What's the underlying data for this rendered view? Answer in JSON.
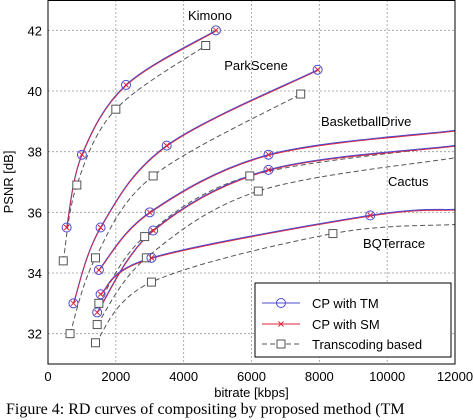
{
  "chart_data": {
    "type": "line",
    "xlabel": "bitrate [kbps]",
    "ylabel": "PSNR [dB]",
    "xlim": [
      0,
      12000
    ],
    "ylim": [
      31,
      43
    ],
    "xticks": [
      0,
      2000,
      4000,
      6000,
      8000,
      10000,
      12000
    ],
    "yticks": [
      32,
      34,
      36,
      38,
      40,
      42
    ],
    "grid": true,
    "legend_placement": "bottom-right",
    "legend": [
      "CP with TM",
      "CP with SM",
      "Transcoding based"
    ],
    "sequences": [
      {
        "label": "Kimono",
        "cp": [
          [
            550,
            35.5
          ],
          [
            1000,
            37.9
          ],
          [
            2300,
            40.2
          ],
          [
            4950,
            42.0
          ]
        ],
        "tc": [
          [
            450,
            34.4
          ],
          [
            850,
            36.9
          ],
          [
            2000,
            39.4
          ],
          [
            4650,
            41.5
          ]
        ]
      },
      {
        "label": "ParkScene",
        "cp": [
          [
            750,
            33.0
          ],
          [
            1550,
            35.5
          ],
          [
            3500,
            38.2
          ],
          [
            7950,
            40.7
          ]
        ],
        "tc": [
          [
            650,
            32.0
          ],
          [
            1400,
            34.5
          ],
          [
            3100,
            37.2
          ],
          [
            7450,
            39.9
          ]
        ]
      },
      {
        "label": "BasketballDrive",
        "cp": [
          [
            1500,
            34.1
          ],
          [
            3000,
            36.0
          ],
          [
            6500,
            37.9
          ],
          [
            12000,
            38.7
          ]
        ],
        "tc": [
          [
            1500,
            33.0
          ],
          [
            2850,
            35.2
          ],
          [
            5950,
            37.2
          ],
          [
            12000,
            38.2
          ]
        ]
      },
      {
        "label": "Cactus",
        "cp": [
          [
            1450,
            32.7
          ],
          [
            3100,
            35.4
          ],
          [
            6500,
            37.4
          ],
          [
            12000,
            38.2
          ]
        ],
        "tc": [
          [
            1450,
            32.3
          ],
          [
            2900,
            34.5
          ],
          [
            6200,
            36.7
          ],
          [
            12000,
            37.8
          ]
        ]
      },
      {
        "label": "BQTerrace",
        "cp": [
          [
            1550,
            33.3
          ],
          [
            3050,
            34.5
          ],
          [
            9500,
            35.9
          ],
          [
            12000,
            36.1
          ]
        ],
        "tc": [
          [
            1400,
            31.7
          ],
          [
            3050,
            33.7
          ],
          [
            8400,
            35.3
          ],
          [
            12000,
            35.6
          ]
        ]
      }
    ],
    "series": [
      {
        "name": "CP with TM",
        "color": "#4b4bd2",
        "marker": "circle",
        "line": "solid"
      },
      {
        "name": "CP with SM",
        "color": "#e0243a",
        "marker": "x",
        "line": "solid"
      },
      {
        "name": "Transcoding based",
        "color": "#555555",
        "marker": "square",
        "line": "dashed"
      }
    ]
  },
  "caption": "Figure 4: RD curves of compositing by proposed method (TM"
}
